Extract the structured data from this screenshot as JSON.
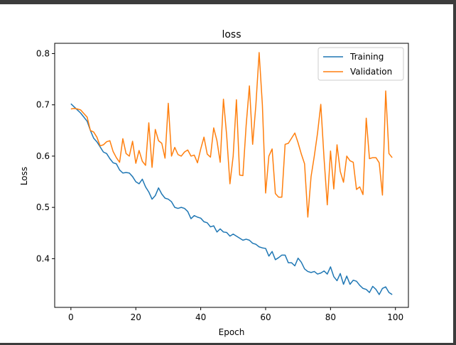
{
  "chart_data": {
    "type": "line",
    "title": "loss",
    "xlabel": "Epoch",
    "ylabel": "Loss",
    "xlim": [
      -5,
      104
    ],
    "ylim": [
      0.305,
      0.82
    ],
    "xticks": [
      0,
      20,
      40,
      60,
      80,
      100
    ],
    "yticks": [
      0.4,
      0.5,
      0.6,
      0.7,
      0.8
    ],
    "grid": false,
    "legend_position": "top-right",
    "series": [
      {
        "name": "Training",
        "color": "#1f77b4",
        "x": [
          0,
          1,
          2,
          3,
          4,
          5,
          6,
          7,
          8,
          9,
          10,
          11,
          12,
          13,
          14,
          15,
          16,
          17,
          18,
          19,
          20,
          21,
          22,
          23,
          24,
          25,
          26,
          27,
          28,
          29,
          30,
          31,
          32,
          33,
          34,
          35,
          36,
          37,
          38,
          39,
          40,
          41,
          42,
          43,
          44,
          45,
          46,
          47,
          48,
          49,
          50,
          51,
          52,
          53,
          54,
          55,
          56,
          57,
          58,
          59,
          60,
          61,
          62,
          63,
          64,
          65,
          66,
          67,
          68,
          69,
          70,
          71,
          72,
          73,
          74,
          75,
          76,
          77,
          78,
          79,
          80,
          81,
          82,
          83,
          84,
          85,
          86,
          87,
          88,
          89,
          90,
          91,
          92,
          93,
          94,
          95,
          96,
          97,
          98,
          99
        ],
        "values": [
          0.702,
          0.696,
          0.69,
          0.684,
          0.676,
          0.668,
          0.65,
          0.635,
          0.628,
          0.618,
          0.608,
          0.605,
          0.595,
          0.587,
          0.585,
          0.573,
          0.567,
          0.568,
          0.567,
          0.56,
          0.55,
          0.546,
          0.555,
          0.54,
          0.53,
          0.516,
          0.523,
          0.538,
          0.526,
          0.518,
          0.516,
          0.511,
          0.5,
          0.498,
          0.5,
          0.498,
          0.492,
          0.478,
          0.484,
          0.481,
          0.479,
          0.472,
          0.47,
          0.462,
          0.464,
          0.452,
          0.458,
          0.452,
          0.451,
          0.444,
          0.448,
          0.444,
          0.44,
          0.436,
          0.438,
          0.436,
          0.43,
          0.428,
          0.423,
          0.421,
          0.42,
          0.405,
          0.414,
          0.398,
          0.402,
          0.407,
          0.407,
          0.392,
          0.392,
          0.386,
          0.401,
          0.393,
          0.38,
          0.375,
          0.373,
          0.375,
          0.37,
          0.372,
          0.376,
          0.37,
          0.384,
          0.365,
          0.357,
          0.371,
          0.35,
          0.366,
          0.35,
          0.358,
          0.356,
          0.348,
          0.342,
          0.34,
          0.334,
          0.346,
          0.34,
          0.33,
          0.342,
          0.345,
          0.334,
          0.33
        ]
      },
      {
        "name": "Validation",
        "color": "#ff7f0e",
        "x": [
          0,
          1,
          2,
          3,
          4,
          5,
          6,
          7,
          8,
          9,
          10,
          11,
          12,
          13,
          14,
          15,
          16,
          17,
          18,
          19,
          20,
          21,
          22,
          23,
          24,
          25,
          26,
          27,
          28,
          29,
          30,
          31,
          32,
          33,
          34,
          35,
          36,
          37,
          38,
          39,
          40,
          41,
          42,
          43,
          44,
          45,
          46,
          47,
          48,
          49,
          50,
          51,
          52,
          53,
          54,
          55,
          56,
          57,
          58,
          59,
          60,
          61,
          62,
          63,
          64,
          65,
          66,
          67,
          68,
          69,
          70,
          71,
          72,
          73,
          74,
          75,
          76,
          77,
          78,
          79,
          80,
          81,
          82,
          83,
          84,
          85,
          86,
          87,
          88,
          89,
          90,
          91,
          92,
          93,
          94,
          95,
          96,
          97,
          98,
          99
        ],
        "values": [
          0.692,
          0.693,
          0.692,
          0.69,
          0.683,
          0.676,
          0.65,
          0.647,
          0.637,
          0.62,
          0.622,
          0.628,
          0.63,
          0.609,
          0.597,
          0.588,
          0.634,
          0.605,
          0.6,
          0.629,
          0.586,
          0.611,
          0.59,
          0.582,
          0.665,
          0.578,
          0.652,
          0.63,
          0.625,
          0.596,
          0.703,
          0.6,
          0.617,
          0.603,
          0.6,
          0.608,
          0.612,
          0.6,
          0.602,
          0.587,
          0.614,
          0.637,
          0.604,
          0.598,
          0.655,
          0.63,
          0.588,
          0.711,
          0.64,
          0.546,
          0.6,
          0.71,
          0.563,
          0.562,
          0.66,
          0.737,
          0.623,
          0.7,
          0.802,
          0.7,
          0.528,
          0.6,
          0.614,
          0.527,
          0.52,
          0.52,
          0.623,
          0.625,
          0.635,
          0.645,
          0.626,
          0.604,
          0.585,
          0.481,
          0.56,
          0.6,
          0.645,
          0.701,
          0.596,
          0.505,
          0.61,
          0.536,
          0.622,
          0.57,
          0.549,
          0.6,
          0.591,
          0.588,
          0.535,
          0.54,
          0.525,
          0.674,
          0.595,
          0.597,
          0.597,
          0.587,
          0.524,
          0.727,
          0.605,
          0.597
        ]
      }
    ]
  }
}
